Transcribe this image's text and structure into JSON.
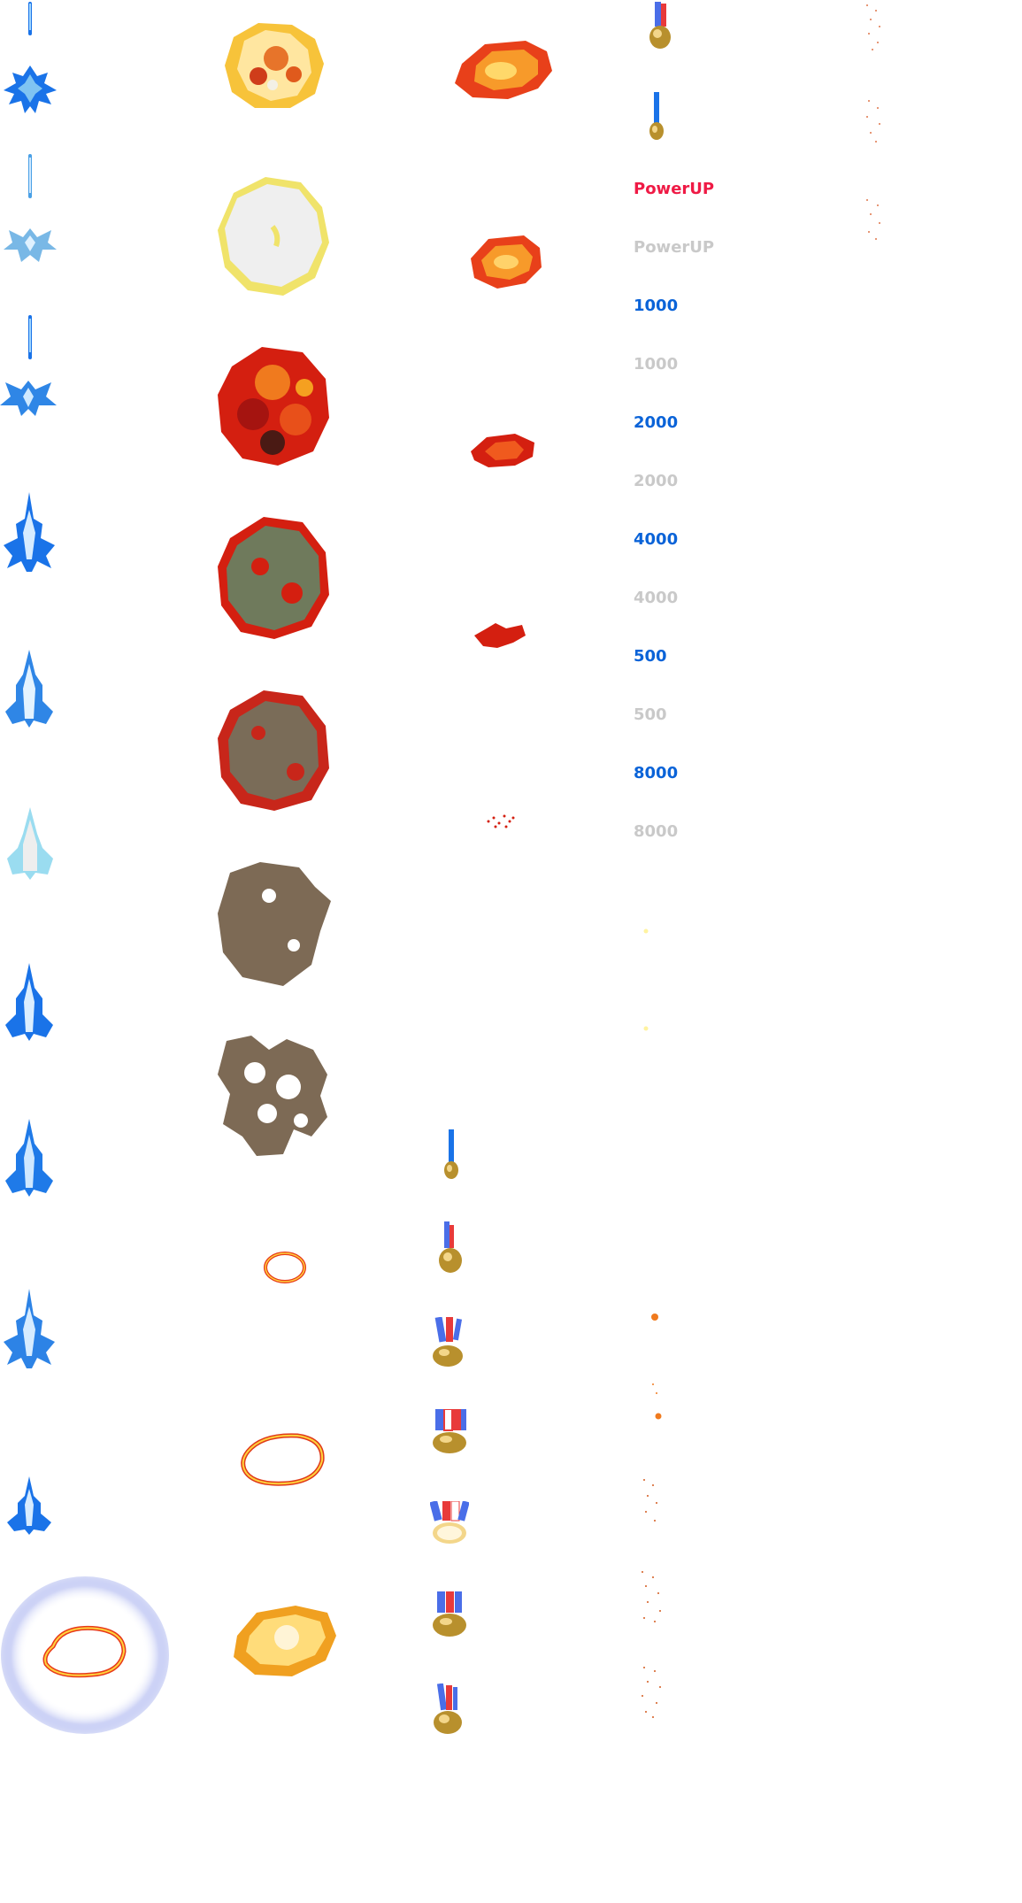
{
  "colors": {
    "blue_fighter": "#1a73e8",
    "blue_light": "#7fc4f2",
    "fire_yellow": "#ffd23c",
    "fire_orange": "#f07a1e",
    "fire_red": "#d41f10",
    "smoke": "#7d6a55",
    "score_blue": "#0a63d8",
    "score_gray": "#c9c9c9",
    "powerup_red": "#ef1a45",
    "shield_glow": "#c9cff5",
    "medal_gold": "#b8902d"
  },
  "score_labels": [
    {
      "text": "PowerUP",
      "color": "#ef1a45"
    },
    {
      "text": "PowerUP",
      "color": "#c9c9c9"
    },
    {
      "text": "1000",
      "color": "#0a63d8"
    },
    {
      "text": "1000",
      "color": "#c9c9c9"
    },
    {
      "text": "2000",
      "color": "#0a63d8"
    },
    {
      "text": "2000",
      "color": "#c9c9c9"
    },
    {
      "text": "4000",
      "color": "#0a63d8"
    },
    {
      "text": "4000",
      "color": "#c9c9c9"
    },
    {
      "text": "500",
      "color": "#0a63d8"
    },
    {
      "text": "500",
      "color": "#c9c9c9"
    },
    {
      "text": "8000",
      "color": "#0a63d8"
    },
    {
      "text": "8000",
      "color": "#c9c9c9"
    }
  ],
  "icons": {
    "fighter": "blue-fighter-icon",
    "bullet": "blue-bullet-icon",
    "explosion": "explosion-icon",
    "smoke": "smoke-cloud-icon",
    "shock_ring": "shock-ring-icon",
    "shield": "shield-bubble-icon",
    "medal": "medal-icon",
    "fireball": "fireball-icon",
    "spark": "spark-particles-icon"
  }
}
